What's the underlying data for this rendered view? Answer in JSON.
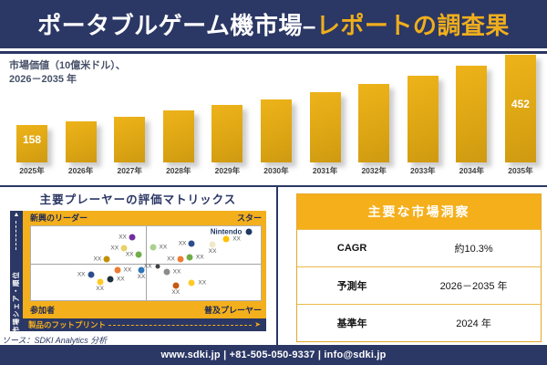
{
  "header": {
    "title_part1": "ポータブルゲーム機市場–",
    "title_part2": "レポートの調査果"
  },
  "colors": {
    "navy": "#2B3764",
    "gold_frame": "#F3AF1C",
    "bar_gold": "#DFA512",
    "header_accent": "#EFAE1D"
  },
  "chart_data": [
    {
      "type": "bar",
      "caption_line1": "市場価値（10億米ドル）、",
      "caption_line2": "2026－2035 年",
      "categories": [
        "2025年",
        "2026年",
        "2027年",
        "2028年",
        "2029年",
        "2030年",
        "2031年",
        "2032年",
        "2033年",
        "2034年",
        "2035年"
      ],
      "values": [
        158,
        173,
        192,
        218,
        241,
        264,
        294,
        328,
        362,
        407,
        452
      ],
      "labeled_indices": [
        0,
        10
      ],
      "labeled_values": {
        "2025年": 158,
        "2035年": 452
      },
      "ylim": [
        0,
        452
      ],
      "bar_color": "#DFA512",
      "grid": false,
      "legend": "none"
    },
    {
      "type": "scatter",
      "title": "主要プレーヤーの評価マトリックス",
      "xlabel": "製品のフットプリント",
      "ylabel": "市場シェア・順位",
      "quadrants": {
        "top_left": "新興のリーダー",
        "top_right": "スター",
        "bottom_left": "参加者",
        "bottom_right": "普及プレーヤー"
      },
      "points": [
        {
          "x_pct": 44,
          "y_pct": 15,
          "color": "#7030A0",
          "label": "XX",
          "label_side": "left"
        },
        {
          "x_pct": 40.5,
          "y_pct": 30,
          "color": "#E8D06B",
          "label": "XX",
          "label_side": "left"
        },
        {
          "x_pct": 47,
          "y_pct": 38,
          "color": "#70AD47",
          "label": "XX",
          "label_side": "left"
        },
        {
          "x_pct": 33,
          "y_pct": 44,
          "color": "#BF9000",
          "label": "XX",
          "label_side": "left"
        },
        {
          "x_pct": 53,
          "y_pct": 28,
          "color": "#A9D18E",
          "label": "XX",
          "label_side": "right"
        },
        {
          "x_pct": 70,
          "y_pct": 23,
          "color": "#2E4D8E",
          "label": "XX",
          "label_side": "left"
        },
        {
          "x_pct": 79,
          "y_pct": 25,
          "color": "#F2E9C9",
          "label": "XX",
          "label_side": "below"
        },
        {
          "x_pct": 85,
          "y_pct": 17,
          "color": "#FFC000",
          "label": "XX",
          "label_side": "right"
        },
        {
          "x_pct": 65,
          "y_pct": 44,
          "color": "#ED7D31",
          "label": "XX",
          "label_side": "left"
        },
        {
          "x_pct": 69,
          "y_pct": 42,
          "color": "#70AD47",
          "label": "XX",
          "label_side": "right"
        },
        {
          "x_pct": 95,
          "y_pct": 7,
          "color": "#1F3864",
          "label": "Nintendo",
          "label_side": "left"
        },
        {
          "x_pct": 26,
          "y_pct": 65,
          "color": "#2E4D8E",
          "label": "XX",
          "label_side": "left"
        },
        {
          "x_pct": 37.5,
          "y_pct": 59,
          "color": "#ED7D31",
          "label": "XX",
          "label_side": "right"
        },
        {
          "x_pct": 48,
          "y_pct": 59,
          "color": "#2E75B6",
          "label": "XX",
          "label_side": "below"
        },
        {
          "x_pct": 34.5,
          "y_pct": 72,
          "color": "#203040",
          "label": "XX",
          "label_side": "right"
        },
        {
          "x_pct": 30,
          "y_pct": 75,
          "color": "#FFC928",
          "label": "XX",
          "label_side": "below"
        },
        {
          "x_pct": 55,
          "y_pct": 54,
          "color": "#404040",
          "size": 5,
          "label": "XX",
          "label_side": "left"
        },
        {
          "x_pct": 59,
          "y_pct": 62,
          "color": "#8C8C8C",
          "label": "XX",
          "label_side": "right"
        },
        {
          "x_pct": 63,
          "y_pct": 80,
          "color": "#C55A11",
          "label": "XX",
          "label_side": "below"
        },
        {
          "x_pct": 70,
          "y_pct": 77,
          "color": "#FFC928",
          "label": "XX",
          "label_side": "right"
        }
      ]
    }
  ],
  "insights": {
    "title": "主要な市場洞察",
    "rows": [
      {
        "label": "CAGR",
        "value": "約10.3%"
      },
      {
        "label": "予測年",
        "value": "2026－2035 年"
      },
      {
        "label": "基準年",
        "value": "2024 年"
      }
    ]
  },
  "source_note": "ソース：SDKI Analytics 分析",
  "footer": {
    "contact_line": "www.sdki.jp | +81-505-050-9337 | info@sdki.jp"
  }
}
